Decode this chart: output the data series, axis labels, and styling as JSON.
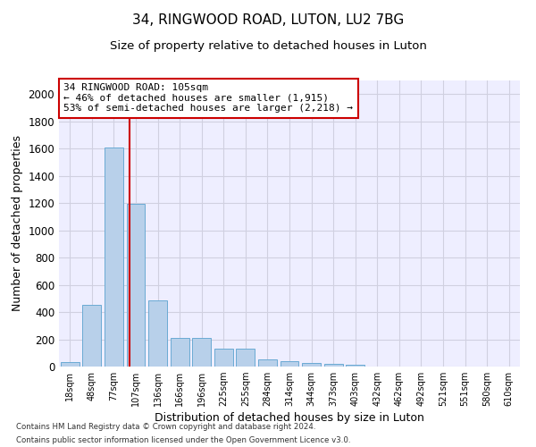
{
  "title": "34, RINGWOOD ROAD, LUTON, LU2 7BG",
  "subtitle": "Size of property relative to detached houses in Luton",
  "xlabel": "Distribution of detached houses by size in Luton",
  "ylabel": "Number of detached properties",
  "categories": [
    "18sqm",
    "48sqm",
    "77sqm",
    "107sqm",
    "136sqm",
    "166sqm",
    "196sqm",
    "225sqm",
    "255sqm",
    "284sqm",
    "314sqm",
    "344sqm",
    "373sqm",
    "403sqm",
    "432sqm",
    "462sqm",
    "492sqm",
    "521sqm",
    "551sqm",
    "580sqm",
    "610sqm"
  ],
  "values": [
    35,
    455,
    1610,
    1195,
    485,
    210,
    210,
    130,
    130,
    50,
    40,
    25,
    20,
    10,
    0,
    0,
    0,
    0,
    0,
    0,
    0
  ],
  "bar_color": "#b8d0ea",
  "bar_edge_color": "#6aaad4",
  "vline_x_index": 2.72,
  "vline_color": "#cc0000",
  "annotation_text": "34 RINGWOOD ROAD: 105sqm\n← 46% of detached houses are smaller (1,915)\n53% of semi-detached houses are larger (2,218) →",
  "annotation_box_color": "#cc0000",
  "annotation_fontsize": 8,
  "ylim": [
    0,
    2100
  ],
  "yticks": [
    0,
    200,
    400,
    600,
    800,
    1000,
    1200,
    1400,
    1600,
    1800,
    2000
  ],
  "title_fontsize": 11,
  "subtitle_fontsize": 9.5,
  "xlabel_fontsize": 9,
  "ylabel_fontsize": 9,
  "footer1": "Contains HM Land Registry data © Crown copyright and database right 2024.",
  "footer2": "Contains public sector information licensed under the Open Government Licence v3.0.",
  "grid_color": "#d0d0e0",
  "bg_color": "#eeeeff"
}
